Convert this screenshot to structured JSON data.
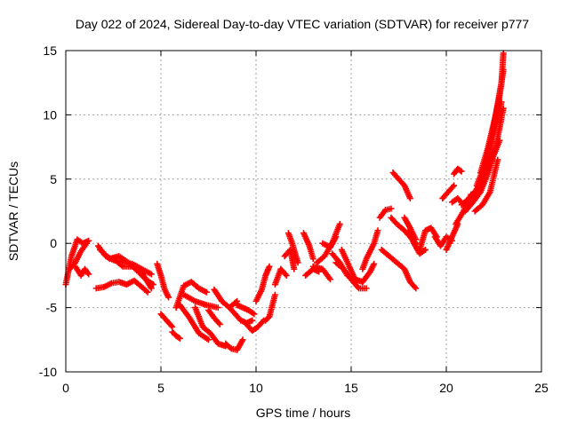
{
  "chart_data": {
    "type": "scatter",
    "title": "Day 022 of 2024, Sidereal Day-to-day VTEC variation (SDTVAR) for receiver p777",
    "xlabel": "GPS time / hours",
    "ylabel": "SDTVAR / TECUs",
    "xlim": [
      0,
      25
    ],
    "ylim": [
      -10,
      15
    ],
    "xticks": [
      "0",
      "5",
      "10",
      "15",
      "20",
      "25"
    ],
    "yticks": [
      "-10",
      "-5",
      "0",
      "5",
      "10",
      "15"
    ],
    "grid": true,
    "marker": "plus",
    "color": "#ff0000",
    "series": [
      {
        "x": [
          0.0,
          0.3,
          0.6,
          0.9,
          1.2
        ],
        "y": [
          -3.2,
          -1.0,
          0.3,
          0.0,
          0.2
        ]
      },
      {
        "x": [
          0.2,
          0.5,
          0.8,
          1.1
        ],
        "y": [
          -2.0,
          -1.5,
          -0.6,
          0.0
        ]
      },
      {
        "x": [
          0.5,
          0.8,
          1.0,
          1.2
        ],
        "y": [
          -1.8,
          -2.5,
          -2.0,
          -2.4
        ]
      },
      {
        "x": [
          1.6,
          2.0,
          2.4,
          2.8,
          3.2,
          3.6,
          4.0,
          4.3
        ],
        "y": [
          -3.5,
          -3.4,
          -3.1,
          -3.0,
          -3.2,
          -2.9,
          -3.4,
          -3.8
        ]
      },
      {
        "x": [
          1.7,
          2.1,
          2.5,
          3.0,
          3.5,
          4.0,
          4.5
        ],
        "y": [
          -0.2,
          -1.0,
          -1.3,
          -1.5,
          -1.6,
          -2.0,
          -2.4
        ]
      },
      {
        "x": [
          1.8,
          2.3,
          2.8,
          3.3,
          3.8,
          4.2,
          4.6
        ],
        "y": [
          -0.5,
          -1.2,
          -1.0,
          -1.5,
          -2.2,
          -2.8,
          -3.2
        ]
      },
      {
        "x": [
          2.5,
          3.0,
          3.5,
          4.0,
          4.5
        ],
        "y": [
          -1.2,
          -1.8,
          -1.8,
          -2.3,
          -3.5
        ]
      },
      {
        "x": [
          4.8,
          5.0,
          5.2,
          5.4
        ],
        "y": [
          -1.6,
          -2.5,
          -3.6,
          -4.2
        ]
      },
      {
        "x": [
          5.0,
          5.3,
          5.6
        ],
        "y": [
          -5.5,
          -6.0,
          -6.5
        ]
      },
      {
        "x": [
          5.6,
          5.8,
          6.0
        ],
        "y": [
          -6.9,
          -7.2,
          -7.4
        ]
      },
      {
        "x": [
          5.8,
          6.2,
          6.6,
          7.0,
          7.4
        ],
        "y": [
          -5.0,
          -3.3,
          -3.0,
          -3.5,
          -3.8
        ]
      },
      {
        "x": [
          6.0,
          6.5,
          7.0,
          7.5
        ],
        "y": [
          -4.8,
          -5.8,
          -7.0,
          -7.5
        ]
      },
      {
        "x": [
          6.2,
          6.8,
          7.4,
          8.0
        ],
        "y": [
          -4.0,
          -4.5,
          -4.8,
          -5.0
        ]
      },
      {
        "x": [
          6.8,
          7.2,
          7.6,
          8.0,
          8.4
        ],
        "y": [
          -5.0,
          -6.5,
          -7.0,
          -7.8,
          -8.0
        ]
      },
      {
        "x": [
          7.5,
          7.8,
          8.1
        ],
        "y": [
          -5.2,
          -5.8,
          -6.3
        ]
      },
      {
        "x": [
          7.8,
          8.2,
          8.6,
          9.0
        ],
        "y": [
          -3.6,
          -4.5,
          -5.0,
          -4.5
        ]
      },
      {
        "x": [
          8.4,
          8.7,
          9.0,
          9.3
        ],
        "y": [
          -7.8,
          -8.2,
          -8.3,
          -7.5
        ]
      },
      {
        "x": [
          8.6,
          8.9,
          9.2,
          9.5,
          9.8
        ],
        "y": [
          -5.0,
          -5.5,
          -6.0,
          -6.2,
          -6.0
        ]
      },
      {
        "x": [
          9.0,
          9.3,
          9.6,
          9.9
        ],
        "y": [
          -4.8,
          -5.0,
          -5.2,
          -5.5
        ]
      },
      {
        "x": [
          9.5,
          9.8,
          10.1,
          10.4
        ],
        "y": [
          -6.3,
          -6.8,
          -6.5,
          -6.0
        ]
      },
      {
        "x": [
          10.0,
          10.3,
          10.5,
          10.7
        ],
        "y": [
          -4.5,
          -3.6,
          -2.5,
          -1.8
        ]
      },
      {
        "x": [
          10.5,
          10.7,
          11.0
        ],
        "y": [
          -6.0,
          -5.7,
          -4.0
        ]
      },
      {
        "x": [
          11.0,
          11.3,
          11.6
        ],
        "y": [
          -3.2,
          -2.0,
          -2.5
        ]
      },
      {
        "x": [
          11.5,
          11.8,
          12.0
        ],
        "y": [
          -1.0,
          -0.5,
          -2.0
        ]
      },
      {
        "x": [
          11.7,
          11.9,
          12.2
        ],
        "y": [
          0.8,
          0.0,
          -1.5
        ]
      },
      {
        "x": [
          12.5,
          12.8,
          13.0
        ],
        "y": [
          0.8,
          -0.2,
          -1.2
        ]
      },
      {
        "x": [
          12.6,
          13.0,
          13.3
        ],
        "y": [
          -2.5,
          -2.0,
          -2.2
        ]
      },
      {
        "x": [
          13.0,
          13.5,
          13.9
        ],
        "y": [
          -1.8,
          -2.0,
          -2.8
        ]
      },
      {
        "x": [
          13.2,
          13.6,
          14.0,
          14.4
        ],
        "y": [
          -1.5,
          -1.0,
          0.0,
          1.5
        ]
      },
      {
        "x": [
          13.5,
          13.9,
          14.2
        ],
        "y": [
          0.0,
          -0.3,
          0.5
        ]
      },
      {
        "x": [
          14.0,
          14.4,
          14.8,
          15.2
        ],
        "y": [
          -0.8,
          -1.5,
          -2.5,
          -3.0
        ]
      },
      {
        "x": [
          14.2,
          14.6,
          15.0,
          15.4,
          15.8
        ],
        "y": [
          -1.5,
          -2.0,
          -2.8,
          -3.5,
          -3.5
        ]
      },
      {
        "x": [
          14.5,
          14.9,
          15.2,
          15.6
        ],
        "y": [
          -0.5,
          -1.8,
          -2.8,
          -3.0
        ]
      },
      {
        "x": [
          15.6,
          15.8,
          16.0,
          16.2,
          16.4
        ],
        "y": [
          -2.0,
          -1.2,
          -0.6,
          0.0,
          1.0
        ]
      },
      {
        "x": [
          15.6,
          15.8,
          16.0,
          16.2
        ],
        "y": [
          -3.0,
          -2.6,
          -2.2,
          -1.6
        ]
      },
      {
        "x": [
          16.5,
          16.8,
          17.1
        ],
        "y": [
          2.0,
          2.6,
          2.7
        ]
      },
      {
        "x": [
          16.6,
          17.0,
          17.4,
          17.8,
          18.1,
          18.4
        ],
        "y": [
          -0.5,
          -1.0,
          -1.5,
          -2.0,
          -3.0,
          -3.5
        ]
      },
      {
        "x": [
          17.1,
          17.4,
          17.8,
          18.1,
          18.4
        ],
        "y": [
          2.0,
          1.5,
          1.0,
          0.5,
          0.0
        ]
      },
      {
        "x": [
          17.2,
          17.5,
          17.8,
          18.1
        ],
        "y": [
          5.5,
          5.0,
          4.5,
          3.5
        ]
      },
      {
        "x": [
          17.8,
          18.1,
          18.4
        ],
        "y": [
          2.0,
          1.2,
          0.3
        ]
      },
      {
        "x": [
          18.0,
          18.3,
          18.6,
          18.9
        ],
        "y": [
          1.0,
          0.0,
          -0.8,
          -0.5
        ]
      },
      {
        "x": [
          18.6,
          18.9,
          19.2,
          19.5
        ],
        "y": [
          -0.5,
          1.0,
          1.2,
          0.5
        ]
      },
      {
        "x": [
          19.4,
          19.7,
          20.0,
          20.3
        ],
        "y": [
          0.5,
          -0.2,
          0.5,
          0.2
        ]
      },
      {
        "x": [
          19.8,
          20.1,
          20.4
        ],
        "y": [
          3.5,
          4.0,
          4.5
        ]
      },
      {
        "x": [
          20.0,
          20.3,
          20.6
        ],
        "y": [
          -0.5,
          0.5,
          1.5
        ]
      },
      {
        "x": [
          20.3,
          20.6,
          20.9
        ],
        "y": [
          3.2,
          3.5,
          3.0
        ]
      },
      {
        "x": [
          20.4,
          20.6,
          20.8
        ],
        "y": [
          5.4,
          5.8,
          5.6
        ]
      },
      {
        "x": [
          20.5,
          20.9,
          21.3,
          21.7
        ],
        "y": [
          1.5,
          2.5,
          3.8,
          4.0
        ]
      },
      {
        "x": [
          20.8,
          21.2,
          21.6,
          22.0,
          22.4,
          22.8
        ],
        "y": [
          3.0,
          3.5,
          4.0,
          5.0,
          6.5,
          8.0
        ]
      },
      {
        "x": [
          21.0,
          21.4,
          21.8,
          22.2,
          22.6,
          23.0
        ],
        "y": [
          2.5,
          3.2,
          4.0,
          5.5,
          7.5,
          10.5
        ]
      },
      {
        "x": [
          21.3,
          21.7,
          22.1,
          22.5,
          22.9
        ],
        "y": [
          3.5,
          4.5,
          6.0,
          8.5,
          11.0
        ]
      },
      {
        "x": [
          21.6,
          22.0,
          22.4,
          22.8,
          23.0
        ],
        "y": [
          4.5,
          6.0,
          8.5,
          11.5,
          13.5
        ]
      },
      {
        "x": [
          21.8,
          22.2,
          22.6,
          22.9,
          23.0
        ],
        "y": [
          5.5,
          7.5,
          10.0,
          12.5,
          14.8
        ]
      },
      {
        "x": [
          21.5,
          21.9,
          22.3,
          22.7
        ],
        "y": [
          2.5,
          3.0,
          4.0,
          6.5
        ]
      }
    ]
  }
}
